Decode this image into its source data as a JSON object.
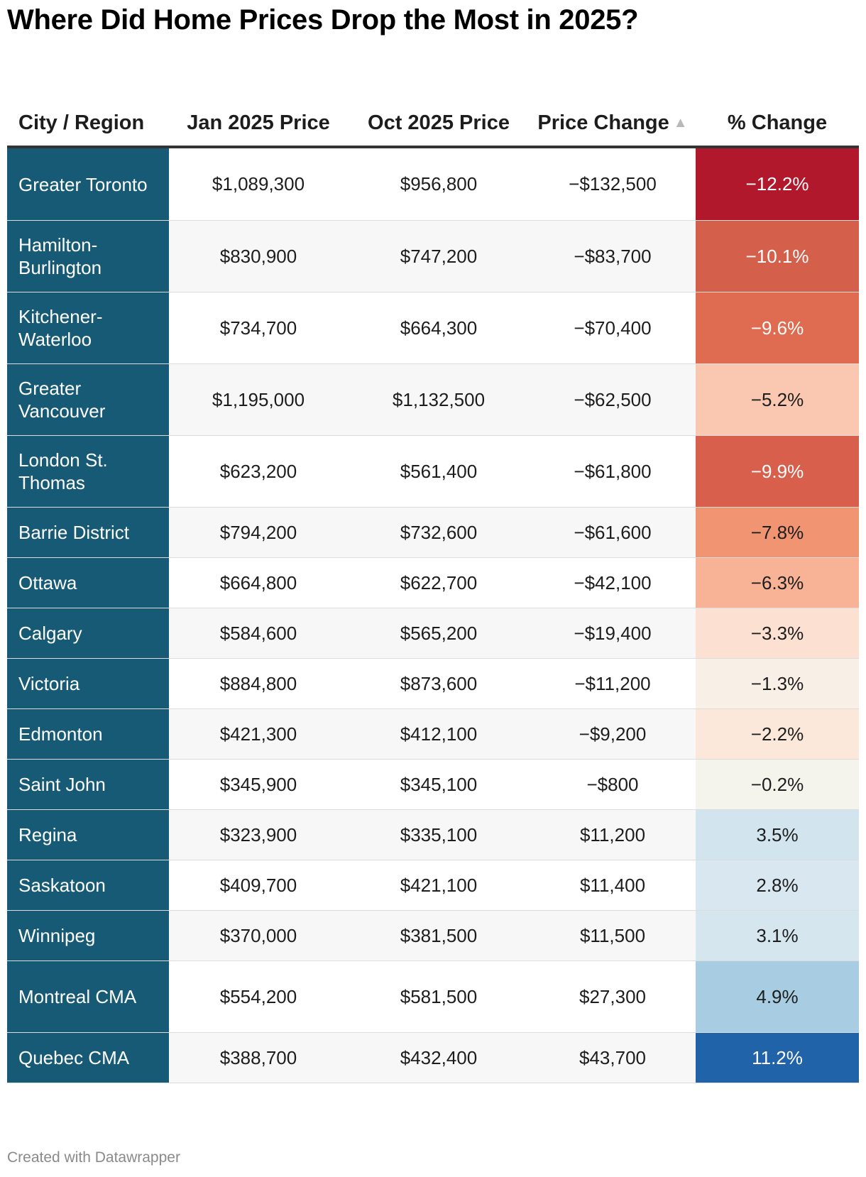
{
  "title": "Where Did Home Prices Drop the Most in 2025?",
  "footer": "Created with Datawrapper",
  "sort_icon": "triangle-up-icon",
  "colors": {
    "city_column_bg": "#175a75",
    "city_text": "#ffffff",
    "header_rule": "#333333",
    "row_alt_bg": "#f7f7f7"
  },
  "chart_data": {
    "type": "table",
    "columns": [
      {
        "label": "City / Region"
      },
      {
        "label": "Jan 2025 Price"
      },
      {
        "label": "Oct 2025 Price"
      },
      {
        "label": "Price Change",
        "sorted": "ascending"
      },
      {
        "label": "% Change"
      }
    ],
    "rows": [
      {
        "city": "Greater Toronto",
        "jan": "$1,089,300",
        "oct": "$956,800",
        "change": "−$132,500",
        "pct": "−12.2%",
        "pct_value": -12.2,
        "pct_color": "#b2182b"
      },
      {
        "city": "Hamilton-Burlington",
        "jan": "$830,900",
        "oct": "$747,200",
        "change": "−$83,700",
        "pct": "−10.1%",
        "pct_value": -10.1,
        "pct_color": "#d45f4b"
      },
      {
        "city": "Kitchener-Waterloo",
        "jan": "$734,700",
        "oct": "$664,300",
        "change": "−$70,400",
        "pct": "−9.6%",
        "pct_value": -9.6,
        "pct_color": "#df6c50"
      },
      {
        "city": "Greater Vancouver",
        "jan": "$1,195,000",
        "oct": "$1,132,500",
        "change": "−$62,500",
        "pct": "−5.2%",
        "pct_value": -5.2,
        "pct_color": "#fac8b0"
      },
      {
        "city": "London St. Thomas",
        "jan": "$623,200",
        "oct": "$561,400",
        "change": "−$61,800",
        "pct": "−9.9%",
        "pct_value": -9.9,
        "pct_color": "#d75f4b"
      },
      {
        "city": "Barrie District",
        "jan": "$794,200",
        "oct": "$732,600",
        "change": "−$61,600",
        "pct": "−7.8%",
        "pct_value": -7.8,
        "pct_color": "#f09472"
      },
      {
        "city": "Ottawa",
        "jan": "$664,800",
        "oct": "$622,700",
        "change": "−$42,100",
        "pct": "−6.3%",
        "pct_value": -6.3,
        "pct_color": "#f8b396"
      },
      {
        "city": "Calgary",
        "jan": "$584,600",
        "oct": "$565,200",
        "change": "−$19,400",
        "pct": "−3.3%",
        "pct_value": -3.3,
        "pct_color": "#fce0d2"
      },
      {
        "city": "Victoria",
        "jan": "$884,800",
        "oct": "$873,600",
        "change": "−$11,200",
        "pct": "−1.3%",
        "pct_value": -1.3,
        "pct_color": "#f8efe6"
      },
      {
        "city": "Edmonton",
        "jan": "$421,300",
        "oct": "$412,100",
        "change": "−$9,200",
        "pct": "−2.2%",
        "pct_value": -2.2,
        "pct_color": "#fbe8da"
      },
      {
        "city": "Saint John",
        "jan": "$345,900",
        "oct": "$345,100",
        "change": "−$800",
        "pct": "−0.2%",
        "pct_value": -0.2,
        "pct_color": "#f5f4ec"
      },
      {
        "city": "Regina",
        "jan": "$323,900",
        "oct": "$335,100",
        "change": "$11,200",
        "pct": "3.5%",
        "pct_value": 3.5,
        "pct_color": "#d2e5ef"
      },
      {
        "city": "Saskatoon",
        "jan": "$409,700",
        "oct": "$421,100",
        "change": "$11,400",
        "pct": "2.8%",
        "pct_value": 2.8,
        "pct_color": "#d9e8f0"
      },
      {
        "city": "Winnipeg",
        "jan": "$370,000",
        "oct": "$381,500",
        "change": "$11,500",
        "pct": "3.1%",
        "pct_value": 3.1,
        "pct_color": "#d5e6ef"
      },
      {
        "city": "Montreal CMA",
        "jan": "$554,200",
        "oct": "$581,500",
        "change": "$27,300",
        "pct": "4.9%",
        "pct_value": 4.9,
        "pct_color": "#a8cde2"
      },
      {
        "city": "Quebec CMA",
        "jan": "$388,700",
        "oct": "$432,400",
        "change": "$43,700",
        "pct": "11.2%",
        "pct_value": 11.2,
        "pct_color": "#2163a8"
      }
    ]
  }
}
